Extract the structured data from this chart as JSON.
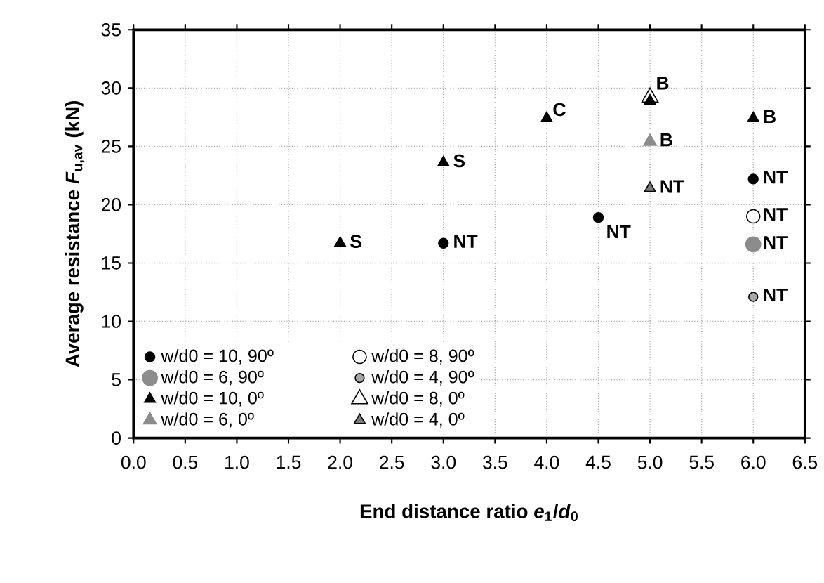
{
  "chart_data": {
    "type": "scatter",
    "xlabel": "End distance ratio *e*$_{1}$/*d*$_{0}$",
    "ylabel": "Average resistance *F*$_{u,av}$ (kN)",
    "xlim": [
      0,
      6.5
    ],
    "ylim": [
      0,
      35
    ],
    "xticks": [
      {
        "value": 0,
        "label": "0.0"
      },
      {
        "value": 0.5,
        "label": "0.5"
      },
      {
        "value": 1,
        "label": "1.0"
      },
      {
        "value": 1.5,
        "label": "1.5"
      },
      {
        "value": 2,
        "label": "2.0"
      },
      {
        "value": 2.5,
        "label": "2.5"
      },
      {
        "value": 3,
        "label": "3.0"
      },
      {
        "value": 3.5,
        "label": "3.5"
      },
      {
        "value": 4,
        "label": "4.0"
      },
      {
        "value": 4.5,
        "label": "4.5"
      },
      {
        "value": 5,
        "label": "5.0"
      },
      {
        "value": 5.5,
        "label": "5.5"
      },
      {
        "value": 6,
        "label": "6.0"
      },
      {
        "value": 6.5,
        "label": "6.5"
      }
    ],
    "yticks": [
      0,
      5,
      10,
      15,
      20,
      25,
      30,
      35
    ],
    "grid": true,
    "legend": "bottom left",
    "series": [
      {
        "name": "w/d0 = 10, 90º",
        "color": "#000000",
        "marker": "circle",
        "x": [
          3,
          4.5,
          6
        ],
        "values": [
          16.7,
          18.9,
          22.2
        ]
      },
      {
        "name": "w/d0 = 8, 90º",
        "color": "#ffffff",
        "marker": "circle",
        "x": [
          6
        ],
        "values": [
          19.0
        ]
      },
      {
        "name": "w/d0 = 6, 90º",
        "color": "#8c8c8c",
        "marker": "circle",
        "x": [
          6
        ],
        "values": [
          16.6
        ]
      },
      {
        "name": "w/d0 = 4, 90º",
        "color": "#a6a6a6",
        "marker": "circle",
        "x": [
          6
        ],
        "values": [
          12.1
        ]
      },
      {
        "name": "w/d0 = 10, 0º",
        "color": "#000000",
        "marker": "triangle",
        "x": [
          2,
          3,
          4,
          5,
          6
        ],
        "values": [
          16.7,
          23.6,
          27.4,
          28.9,
          27.4
        ]
      },
      {
        "name": "w/d0 = 8, 0º",
        "color": "#ffffff",
        "marker": "triangle",
        "x": [
          5
        ],
        "values": [
          29.2
        ]
      },
      {
        "name": "w/d0 = 6, 0º",
        "color": "#8c8c8c",
        "marker": "triangle",
        "x": [
          5
        ],
        "values": [
          25.4
        ]
      },
      {
        "name": "w/d0 = 4, 0º",
        "color": "#7a7a7a",
        "marker": "triangle",
        "x": [
          5
        ],
        "values": [
          21.4
        ]
      }
    ],
    "annotations": [
      {
        "text": "S",
        "x": 2,
        "y": 16.7
      },
      {
        "text": "S",
        "x": 3,
        "y": 23.6
      },
      {
        "text": "C",
        "x": 4,
        "y": 27.4
      },
      {
        "text": "B",
        "x": 5,
        "y": 29.2
      },
      {
        "text": "B",
        "x": 5,
        "y": 25.4
      },
      {
        "text": "NT",
        "x": 5,
        "y": 21.4
      },
      {
        "text": "B",
        "x": 6,
        "y": 27.4
      },
      {
        "text": "NT",
        "x": 3,
        "y": 16.7
      },
      {
        "text": "NT",
        "x": 4.5,
        "y": 18.9
      },
      {
        "text": "NT",
        "x": 6,
        "y": 22.2
      },
      {
        "text": "NT",
        "x": 6,
        "y": 19.0
      },
      {
        "text": "NT",
        "x": 6,
        "y": 16.6
      },
      {
        "text": "NT",
        "x": 6,
        "y": 12.1
      }
    ]
  }
}
